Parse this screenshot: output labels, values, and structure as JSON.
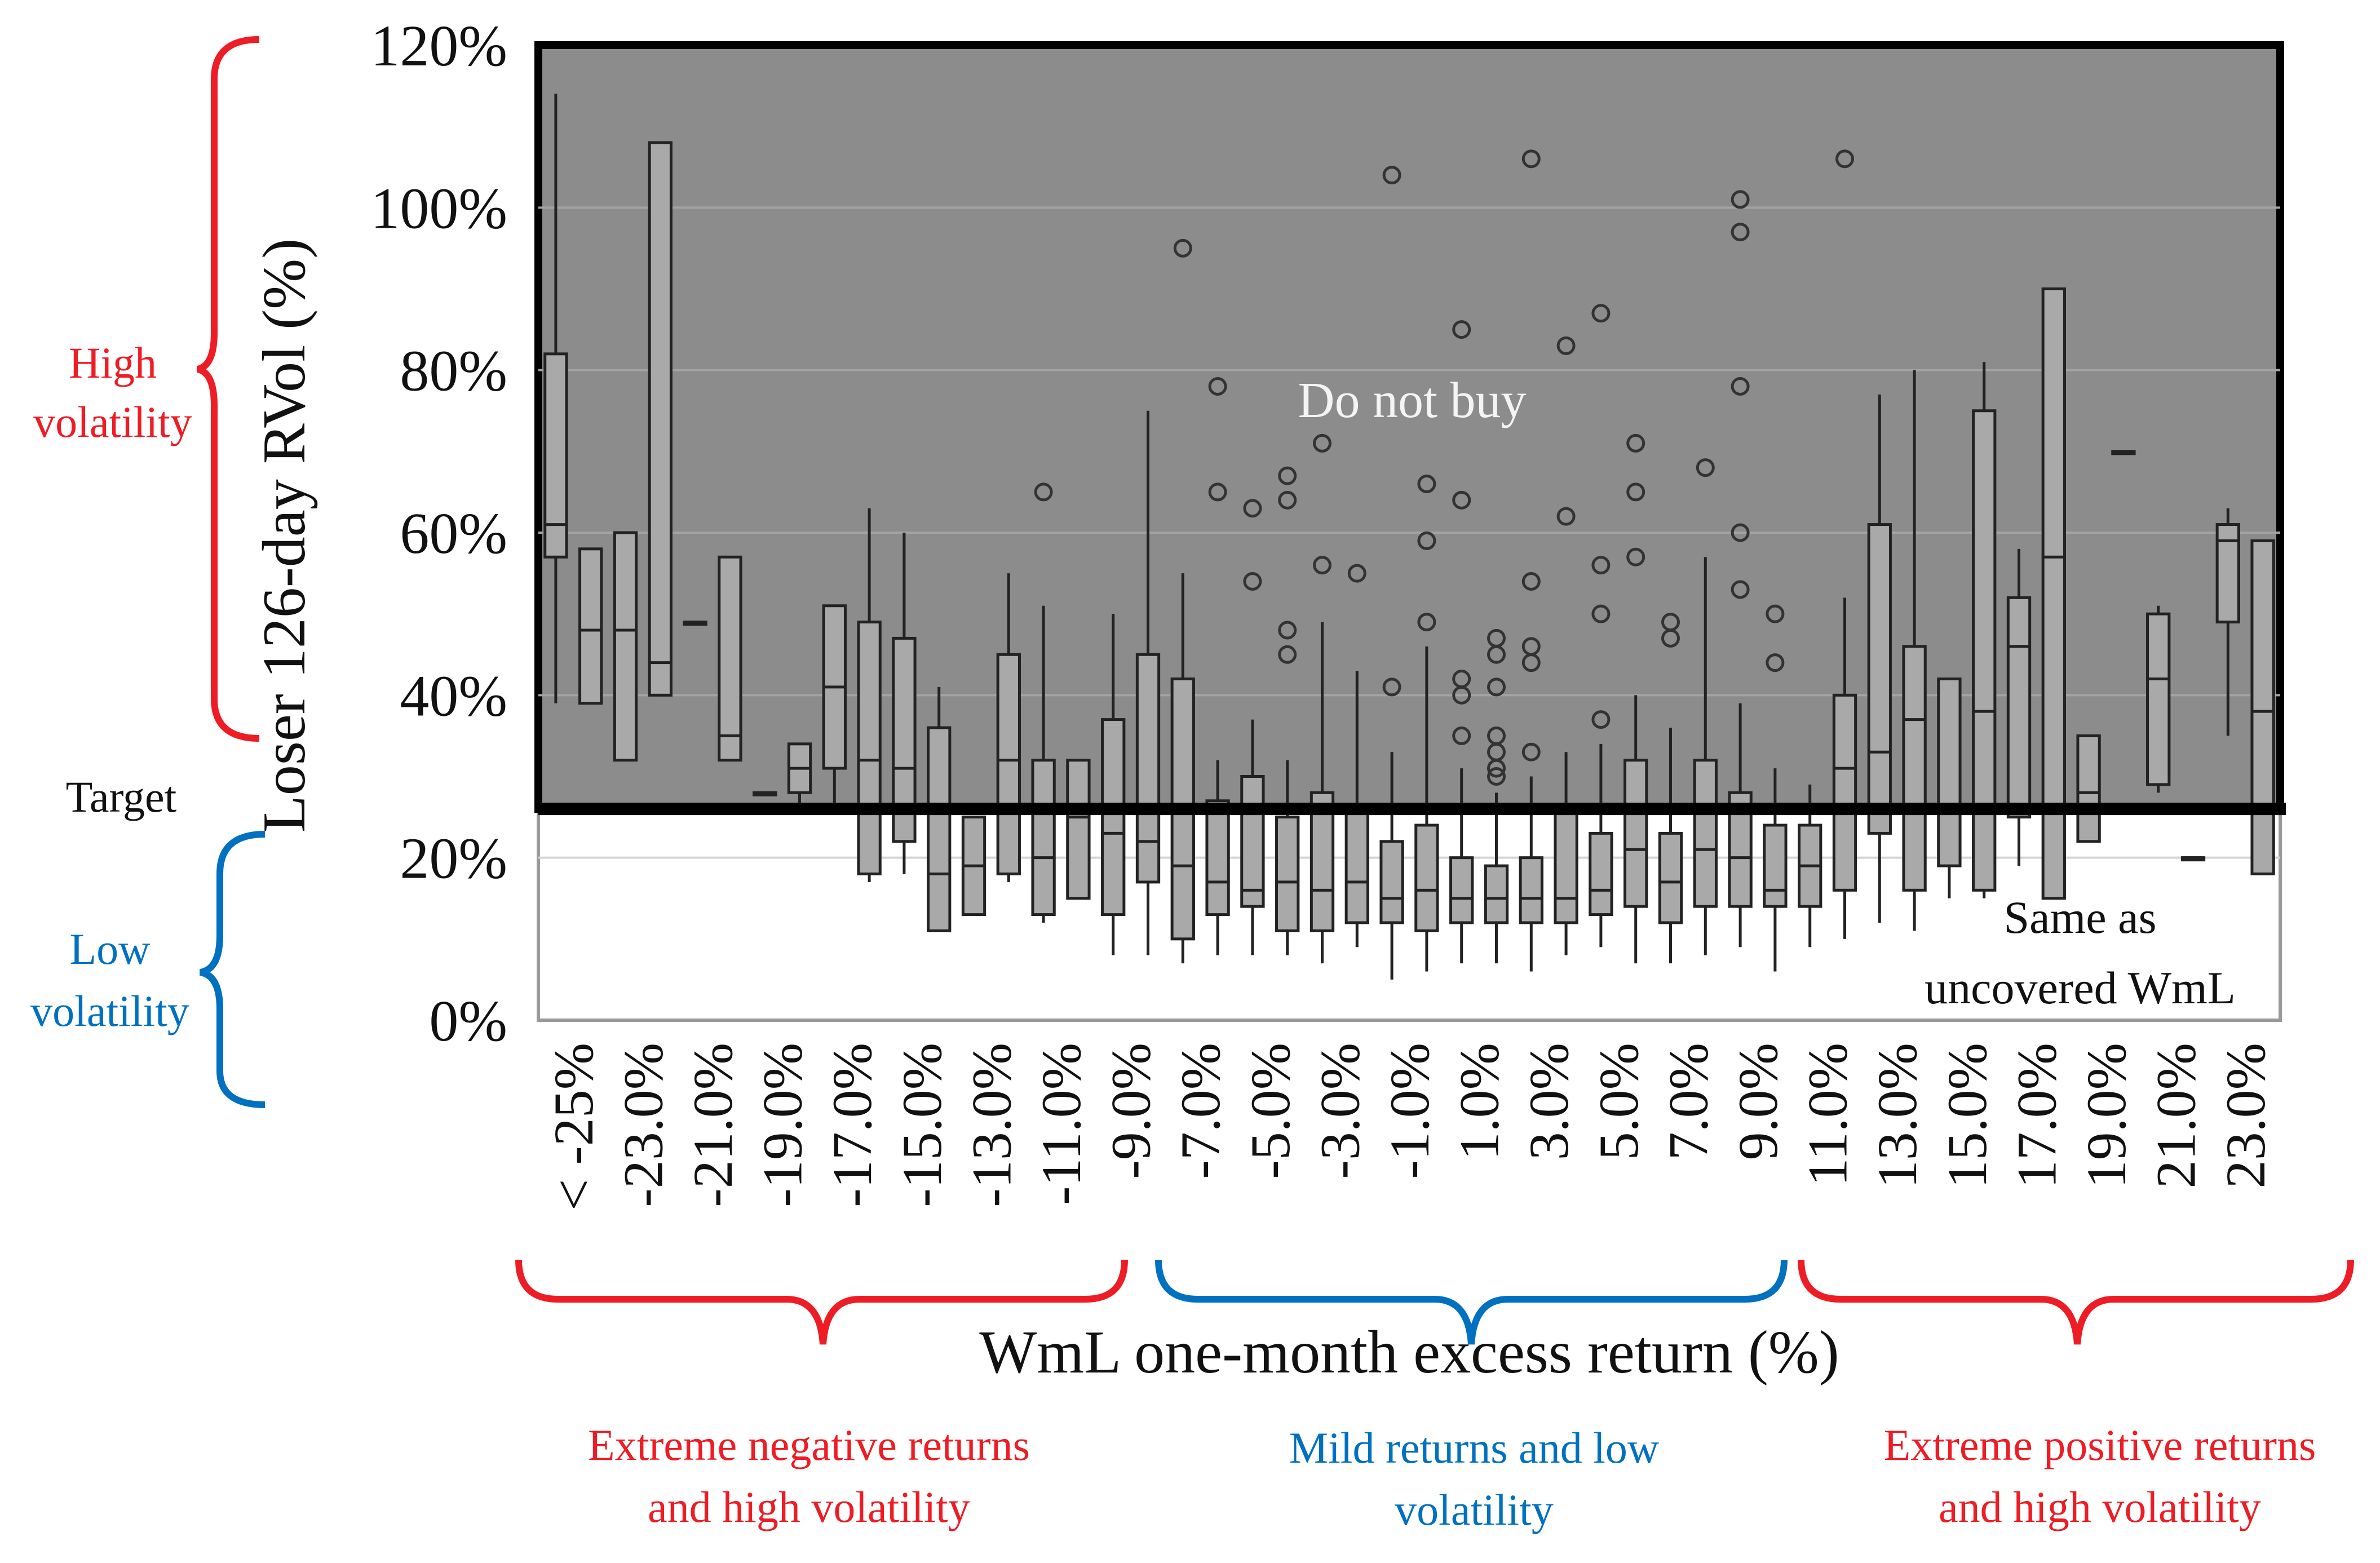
{
  "chart_data": {
    "type": "boxplot",
    "title": "",
    "ylabel": "Loser 126-day RVol (%)",
    "xlabel": "WmL one-month excess return (%)",
    "ylim": [
      0,
      120
    ],
    "y_ticks": [
      "0%",
      "20%",
      "40%",
      "60%",
      "80%",
      "100%",
      "120%"
    ],
    "y_tick_values": [
      0,
      20,
      40,
      60,
      80,
      100,
      120
    ],
    "x_tick_labels": [
      "< -25%",
      "-23.0%",
      "-21.0%",
      "-19.0%",
      "-17.0%",
      "-15.0%",
      "-13.0%",
      "-11.0%",
      "-9.0%",
      "-7.0%",
      "-5.0%",
      "-3.0%",
      "-1.0%",
      "1.0%",
      "3.0%",
      "5.0%",
      "7.0%",
      "9.0%",
      "11.0%",
      "13.0%",
      "15.0%",
      "17.0%",
      "19.0%",
      "21.0%",
      "23.0%"
    ],
    "target_level": 26,
    "boxes": [
      {
        "wmin": 39,
        "q1": 57,
        "med": 61,
        "q3": 82,
        "wmax": 114,
        "outliers": []
      },
      {
        "wmin": 39,
        "q1": 39,
        "med": 48,
        "q3": 58,
        "wmax": 58,
        "outliers": []
      },
      {
        "wmin": 32,
        "q1": 32,
        "med": 48,
        "q3": 60,
        "wmax": 60,
        "outliers": []
      },
      {
        "wmin": 40,
        "q1": 40,
        "med": 44,
        "q3": 108,
        "wmax": 108,
        "outliers": []
      },
      {
        "wmin": 49,
        "q1": 49,
        "med": 49,
        "q3": 49,
        "wmax": 49,
        "outliers": []
      },
      {
        "wmin": 32,
        "q1": 32,
        "med": 35,
        "q3": 57,
        "wmax": 57,
        "outliers": []
      },
      {
        "wmin": 28,
        "q1": 28,
        "med": 28,
        "q3": 28,
        "wmax": 28,
        "outliers": []
      },
      {
        "wmin": 26,
        "q1": 28,
        "med": 31,
        "q3": 34,
        "wmax": 34,
        "outliers": []
      },
      {
        "wmin": 26,
        "q1": 31,
        "med": 41,
        "q3": 51,
        "wmax": 51,
        "outliers": []
      },
      {
        "wmin": 17,
        "q1": 18,
        "med": 32,
        "q3": 49,
        "wmax": 63,
        "outliers": []
      },
      {
        "wmin": 18,
        "q1": 22,
        "med": 31,
        "q3": 47,
        "wmax": 60,
        "outliers": []
      },
      {
        "wmin": 11,
        "q1": 11,
        "med": 18,
        "q3": 36,
        "wmax": 41,
        "outliers": []
      },
      {
        "wmin": 13,
        "q1": 13,
        "med": 19,
        "q3": 25,
        "wmax": 25,
        "outliers": []
      },
      {
        "wmin": 17,
        "q1": 18,
        "med": 32,
        "q3": 45,
        "wmax": 55,
        "outliers": []
      },
      {
        "wmin": 12,
        "q1": 13,
        "med": 20,
        "q3": 32,
        "wmax": 51,
        "outliers": [
          65
        ]
      },
      {
        "wmin": 15,
        "q1": 15,
        "med": 25,
        "q3": 32,
        "wmax": 32,
        "outliers": []
      },
      {
        "wmin": 8,
        "q1": 13,
        "med": 23,
        "q3": 37,
        "wmax": 50,
        "outliers": []
      },
      {
        "wmin": 8,
        "q1": 17,
        "med": 22,
        "q3": 45,
        "wmax": 75,
        "outliers": []
      },
      {
        "wmin": 7,
        "q1": 10,
        "med": 19,
        "q3": 42,
        "wmax": 55,
        "outliers": [
          95
        ]
      },
      {
        "wmin": 8,
        "q1": 13,
        "med": 17,
        "q3": 27,
        "wmax": 32,
        "outliers": [
          78,
          65
        ]
      },
      {
        "wmin": 8,
        "q1": 14,
        "med": 16,
        "q3": 30,
        "wmax": 37,
        "outliers": [
          63,
          54
        ]
      },
      {
        "wmin": 8,
        "q1": 11,
        "med": 17,
        "q3": 25,
        "wmax": 32,
        "outliers": [
          67,
          64,
          48,
          45
        ]
      },
      {
        "wmin": 7,
        "q1": 11,
        "med": 16,
        "q3": 28,
        "wmax": 49,
        "outliers": [
          71,
          56
        ]
      },
      {
        "wmin": 9,
        "q1": 12,
        "med": 17,
        "q3": 26,
        "wmax": 43,
        "outliers": [
          55
        ]
      },
      {
        "wmin": 5,
        "q1": 12,
        "med": 15,
        "q3": 22,
        "wmax": 33,
        "outliers": [
          104,
          41
        ]
      },
      {
        "wmin": 6,
        "q1": 11,
        "med": 16,
        "q3": 24,
        "wmax": 46,
        "outliers": [
          66,
          59,
          49
        ]
      },
      {
        "wmin": 7,
        "q1": 12,
        "med": 15,
        "q3": 20,
        "wmax": 31,
        "outliers": [
          85,
          64,
          42,
          40,
          35
        ]
      },
      {
        "wmin": 7,
        "q1": 12,
        "med": 15,
        "q3": 19,
        "wmax": 28,
        "outliers": [
          47,
          45,
          41,
          35,
          33,
          31,
          30
        ]
      },
      {
        "wmin": 6,
        "q1": 12,
        "med": 15,
        "q3": 20,
        "wmax": 30,
        "outliers": [
          106,
          54,
          46,
          44,
          33
        ]
      },
      {
        "wmin": 8,
        "q1": 12,
        "med": 15,
        "q3": 26,
        "wmax": 33,
        "outliers": [
          83,
          62
        ]
      },
      {
        "wmin": 9,
        "q1": 13,
        "med": 16,
        "q3": 23,
        "wmax": 34,
        "outliers": [
          87,
          56,
          50,
          37
        ]
      },
      {
        "wmin": 7,
        "q1": 14,
        "med": 21,
        "q3": 32,
        "wmax": 40,
        "outliers": [
          71,
          65,
          57
        ]
      },
      {
        "wmin": 7,
        "q1": 12,
        "med": 17,
        "q3": 23,
        "wmax": 36,
        "outliers": [
          49,
          47
        ]
      },
      {
        "wmin": 8,
        "q1": 14,
        "med": 21,
        "q3": 32,
        "wmax": 57,
        "outliers": [
          68
        ]
      },
      {
        "wmin": 9,
        "q1": 14,
        "med": 20,
        "q3": 28,
        "wmax": 39,
        "outliers": [
          101,
          97,
          78,
          60,
          53
        ]
      },
      {
        "wmin": 6,
        "q1": 14,
        "med": 16,
        "q3": 24,
        "wmax": 31,
        "outliers": [
          50,
          44
        ]
      },
      {
        "wmin": 9,
        "q1": 14,
        "med": 19,
        "q3": 24,
        "wmax": 29,
        "outliers": []
      },
      {
        "wmin": 10,
        "q1": 16,
        "med": 31,
        "q3": 40,
        "wmax": 52,
        "outliers": [
          106
        ]
      },
      {
        "wmin": 12,
        "q1": 23,
        "med": 33,
        "q3": 61,
        "wmax": 77,
        "outliers": []
      },
      {
        "wmin": 11,
        "q1": 16,
        "med": 37,
        "q3": 46,
        "wmax": 80,
        "outliers": []
      },
      {
        "wmin": 15,
        "q1": 19,
        "med": 26,
        "q3": 42,
        "wmax": 42,
        "outliers": []
      },
      {
        "wmin": 15,
        "q1": 16,
        "med": 38,
        "q3": 75,
        "wmax": 81,
        "outliers": []
      },
      {
        "wmin": 19,
        "q1": 25,
        "med": 46,
        "q3": 52,
        "wmax": 58,
        "outliers": []
      },
      {
        "wmin": 15,
        "q1": 15,
        "med": 57,
        "q3": 90,
        "wmax": 90,
        "outliers": []
      },
      {
        "wmin": 22,
        "q1": 22,
        "med": 28,
        "q3": 35,
        "wmax": 35,
        "outliers": []
      },
      {
        "wmin": 70,
        "q1": 70,
        "med": 70,
        "q3": 70,
        "wmax": 70,
        "outliers": []
      },
      {
        "wmin": 28,
        "q1": 29,
        "med": 42,
        "q3": 50,
        "wmax": 51,
        "outliers": []
      },
      {
        "wmin": 20,
        "q1": 20,
        "med": 20,
        "q3": 20,
        "wmax": 20,
        "outliers": []
      },
      {
        "wmin": 35,
        "q1": 49,
        "med": 59,
        "q3": 61,
        "wmax": 63,
        "outliers": []
      },
      {
        "wmin": 18,
        "q1": 18,
        "med": 38,
        "q3": 59,
        "wmax": 59,
        "outliers": []
      }
    ],
    "annotations": {
      "do_not_buy": "Do not buy",
      "same_as_line1": "Same as",
      "same_as_line2": "uncovered WmL",
      "high_vol_line1": "High",
      "high_vol_line2": "volatility",
      "target": "Target",
      "low_vol_line1": "Low",
      "low_vol_line2": "volatility",
      "neg_line1": "Extreme negative returns",
      "neg_line2": "and high volatility",
      "mild_line1": "Mild returns and low",
      "mild_line2": "volatility",
      "pos_line1": "Extreme positive returns",
      "pos_line2": "and high volatility"
    },
    "colors": {
      "shaded_region": "#8c8c8c",
      "box_fill": "#a9a9a9",
      "target_line": "#000000",
      "red": "#ee1c24",
      "blue": "#0070c0"
    }
  }
}
